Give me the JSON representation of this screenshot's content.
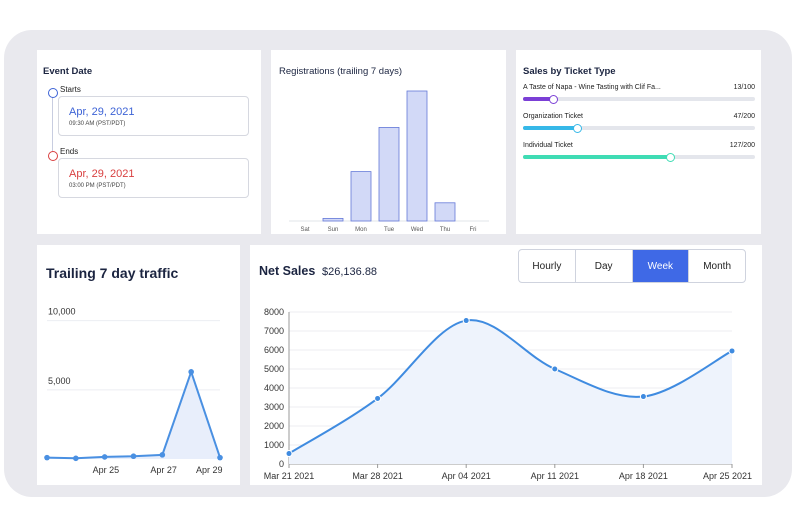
{
  "event": {
    "title": "Event Date",
    "starts_label": "Starts",
    "starts_date": "Apr, 29, 2021",
    "starts_time": "09:30 AM (PST/PDT)",
    "ends_label": "Ends",
    "ends_date": "Apr, 29, 2021",
    "ends_time": "03:00 PM (PST/PDT)",
    "start_color": "#3d63d6",
    "end_color": "#d94040"
  },
  "registrations": {
    "title": "Registrations (trailing 7 days)",
    "chart_data": {
      "type": "bar",
      "categories": [
        "Sat",
        "Sun",
        "Mon",
        "Tue",
        "Wed",
        "Thu",
        "Fri"
      ],
      "values": [
        0,
        2,
        38,
        72,
        100,
        14,
        0
      ],
      "ylim": [
        0,
        100
      ]
    }
  },
  "tickets": {
    "title": "Sales by Ticket Type",
    "items": [
      {
        "name": "A Taste of Napa - Wine Tasting with Clif Fa...",
        "count": "13/100",
        "fraction": 0.13,
        "color": "#7b3fd6"
      },
      {
        "name": "Organization Ticket",
        "count": "47/200",
        "fraction": 0.235,
        "color": "#36b8e8"
      },
      {
        "name": "Individual Ticket",
        "count": "127/200",
        "fraction": 0.635,
        "color": "#3fdcb4"
      }
    ]
  },
  "traffic": {
    "title": "Trailing 7 day traffic",
    "chart_data": {
      "type": "area",
      "x_labels": [
        "Apr 25",
        "Apr 27",
        "Apr 29"
      ],
      "y_ticks": [
        "10,000",
        "5,000"
      ],
      "values": [
        100,
        50,
        150,
        200,
        300,
        6300,
        100
      ],
      "ylim": [
        0,
        12000
      ]
    }
  },
  "sales": {
    "title": "Net Sales",
    "total": "$26,136.88",
    "tabs": [
      "Hourly",
      "Day",
      "Week",
      "Month"
    ],
    "active_tab": "Week",
    "chart_data": {
      "type": "line",
      "x": [
        "Mar 21 2021",
        "Mar 28 2021",
        "Apr 04 2021",
        "Apr 11 2021",
        "Apr 18 2021",
        "Apr 25 2021"
      ],
      "y_ticks": [
        "0",
        "1000",
        "2000",
        "3000",
        "4000",
        "5000",
        "6000",
        "7000",
        "8000"
      ],
      "values": [
        550,
        3450,
        7550,
        5000,
        3550,
        5950
      ],
      "ylim": [
        0,
        8000
      ],
      "color": "#3f8be0"
    }
  }
}
